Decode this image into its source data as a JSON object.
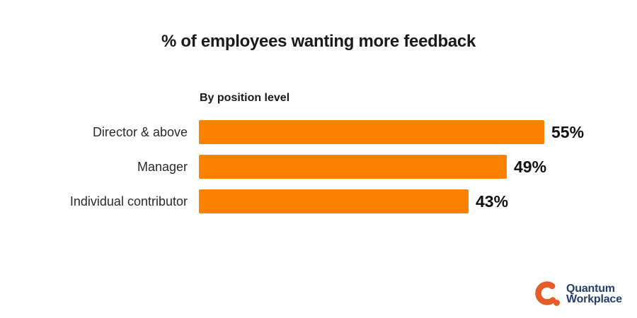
{
  "page": {
    "background": "#ffffff"
  },
  "title": "% of employees wanting more feedback",
  "chart_data": {
    "type": "bar",
    "orientation": "horizontal",
    "title": "% of employees wanting more feedback",
    "subtitle": "By position level",
    "categories": [
      "Director & above",
      "Manager",
      "Individual contributor"
    ],
    "values": [
      55,
      49,
      43
    ],
    "value_labels": [
      "55%",
      "49%",
      "43%"
    ],
    "unit": "%",
    "bar_color": "#fb8200",
    "value_label_color": "#111111",
    "category_label_color": "#2a2a2a",
    "xlim": [
      0,
      62
    ],
    "grid": false,
    "axes_hidden": true,
    "legend": "none"
  },
  "logo": {
    "line1": "Quantum",
    "line2": "Workplace",
    "mark": "q-ring-with-dot",
    "mark_color": "#e65c28",
    "text_color": "#243f6b"
  },
  "colors": {
    "title_text": "#1a1a1a",
    "bar_orange": "#fb8200",
    "logo_orange": "#e65c28",
    "logo_navy": "#243f6b"
  }
}
